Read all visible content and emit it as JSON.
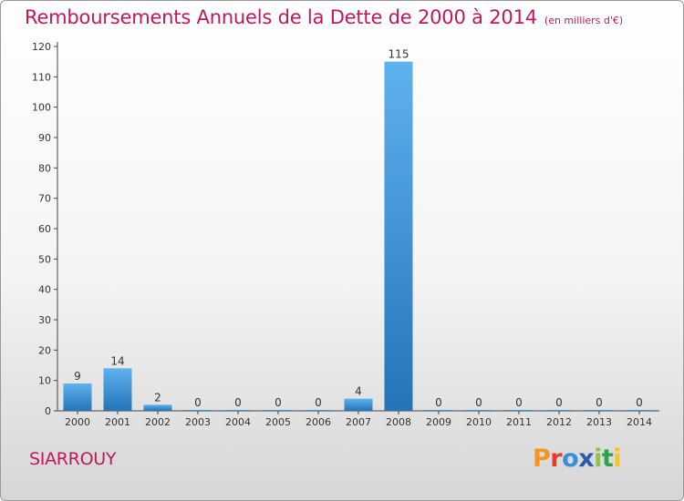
{
  "header": {
    "title": "Remboursements Annuels de la Dette de 2000 à 2014",
    "subtitle": "(en milliers d'€)"
  },
  "footer": {
    "commune": "SIARROUY",
    "logo_text": "Proxiti",
    "logo_colors": [
      "#f7941d",
      "#e63c2e",
      "#3a8fd6",
      "#2b5cab",
      "#8cc63f",
      "#2fa24a",
      "#f7c325"
    ]
  },
  "colors": {
    "bar": "#3a8fd6",
    "bar_light": "#5eb2ee",
    "bar_dark": "#2474b8",
    "title": "#c2185b"
  },
  "chart_data": {
    "type": "bar",
    "title": "Remboursements Annuels de la Dette de 2000 à 2014",
    "subtitle": "(en milliers d'€)",
    "xlabel": "",
    "ylabel": "",
    "ylim": [
      0,
      120
    ],
    "yticks": [
      0,
      10,
      20,
      30,
      40,
      50,
      60,
      70,
      80,
      90,
      100,
      110,
      120
    ],
    "grid": false,
    "categories": [
      "2000",
      "2001",
      "2002",
      "2003",
      "2004",
      "2005",
      "2006",
      "2007",
      "2008",
      "2009",
      "2010",
      "2011",
      "2012",
      "2013",
      "2014"
    ],
    "values": [
      9,
      14,
      2,
      0,
      0,
      0,
      0,
      4,
      115,
      0,
      0,
      0,
      0,
      0,
      0
    ]
  }
}
